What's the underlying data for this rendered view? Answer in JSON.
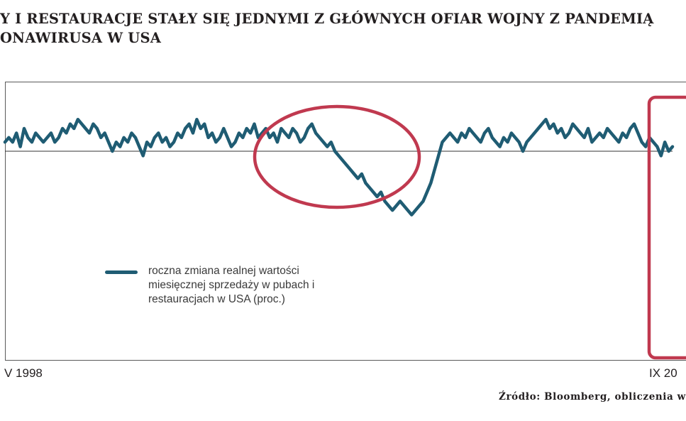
{
  "title": {
    "line1": "Y I RESTAURACJE STAŁY SIĘ JEDNYMI Z GŁÓWNYCH OFIAR WOJNY Z PANDEMIĄ",
    "line2": "ONAWIRUSA W USA"
  },
  "legend": {
    "label": "roczna zmiana realnej wartości miesięcznej sprzedaży w pubach i restauracjach w USA (proc.)"
  },
  "source": "Źródło: Bloomberg, obliczenia w",
  "colors": {
    "line": "#1f5c73",
    "highlight": "#c0394f",
    "zero_line": "#333333"
  },
  "chart_data": {
    "type": "line",
    "x_tick_labels": [
      "V 1998",
      "IX 20"
    ],
    "series": [
      {
        "name": "roczna zmiana realnej wartości miesięcznej sprzedaży w pubach i restauracjach w USA (proc.)",
        "values": [
          2,
          3,
          2,
          4,
          1,
          5,
          3,
          2,
          4,
          3,
          2,
          3,
          4,
          2,
          3,
          5,
          4,
          6,
          5,
          7,
          6,
          5,
          4,
          6,
          5,
          3,
          4,
          2,
          0,
          2,
          1,
          3,
          2,
          4,
          3,
          1,
          -1,
          2,
          1,
          3,
          4,
          2,
          3,
          1,
          2,
          4,
          3,
          5,
          6,
          4,
          7,
          5,
          6,
          3,
          4,
          2,
          3,
          5,
          3,
          1,
          2,
          4,
          3,
          5,
          4,
          6,
          3,
          4,
          5,
          3,
          4,
          2,
          5,
          4,
          3,
          5,
          4,
          2,
          3,
          5,
          6,
          4,
          3,
          2,
          1,
          2,
          0,
          -1,
          -2,
          -3,
          -4,
          -5,
          -6,
          -5,
          -7,
          -8,
          -9,
          -10,
          -9,
          -11,
          -12,
          -13,
          -12,
          -11,
          -12,
          -13,
          -14,
          -13,
          -12,
          -11,
          -9,
          -7,
          -4,
          -1,
          2,
          3,
          4,
          3,
          2,
          4,
          3,
          5,
          4,
          3,
          2,
          4,
          5,
          3,
          2,
          1,
          3,
          2,
          4,
          3,
          2,
          0,
          2,
          3,
          4,
          5,
          6,
          7,
          5,
          6,
          4,
          5,
          3,
          4,
          6,
          5,
          4,
          3,
          5,
          2,
          3,
          4,
          3,
          5,
          4,
          3,
          2,
          4,
          3,
          5,
          6,
          4,
          2,
          1,
          3,
          2,
          1,
          -1,
          2,
          0,
          1
        ]
      }
    ],
    "baseline": 0,
    "highlights": [
      "ellipse",
      "rectangle"
    ],
    "grid": false
  }
}
